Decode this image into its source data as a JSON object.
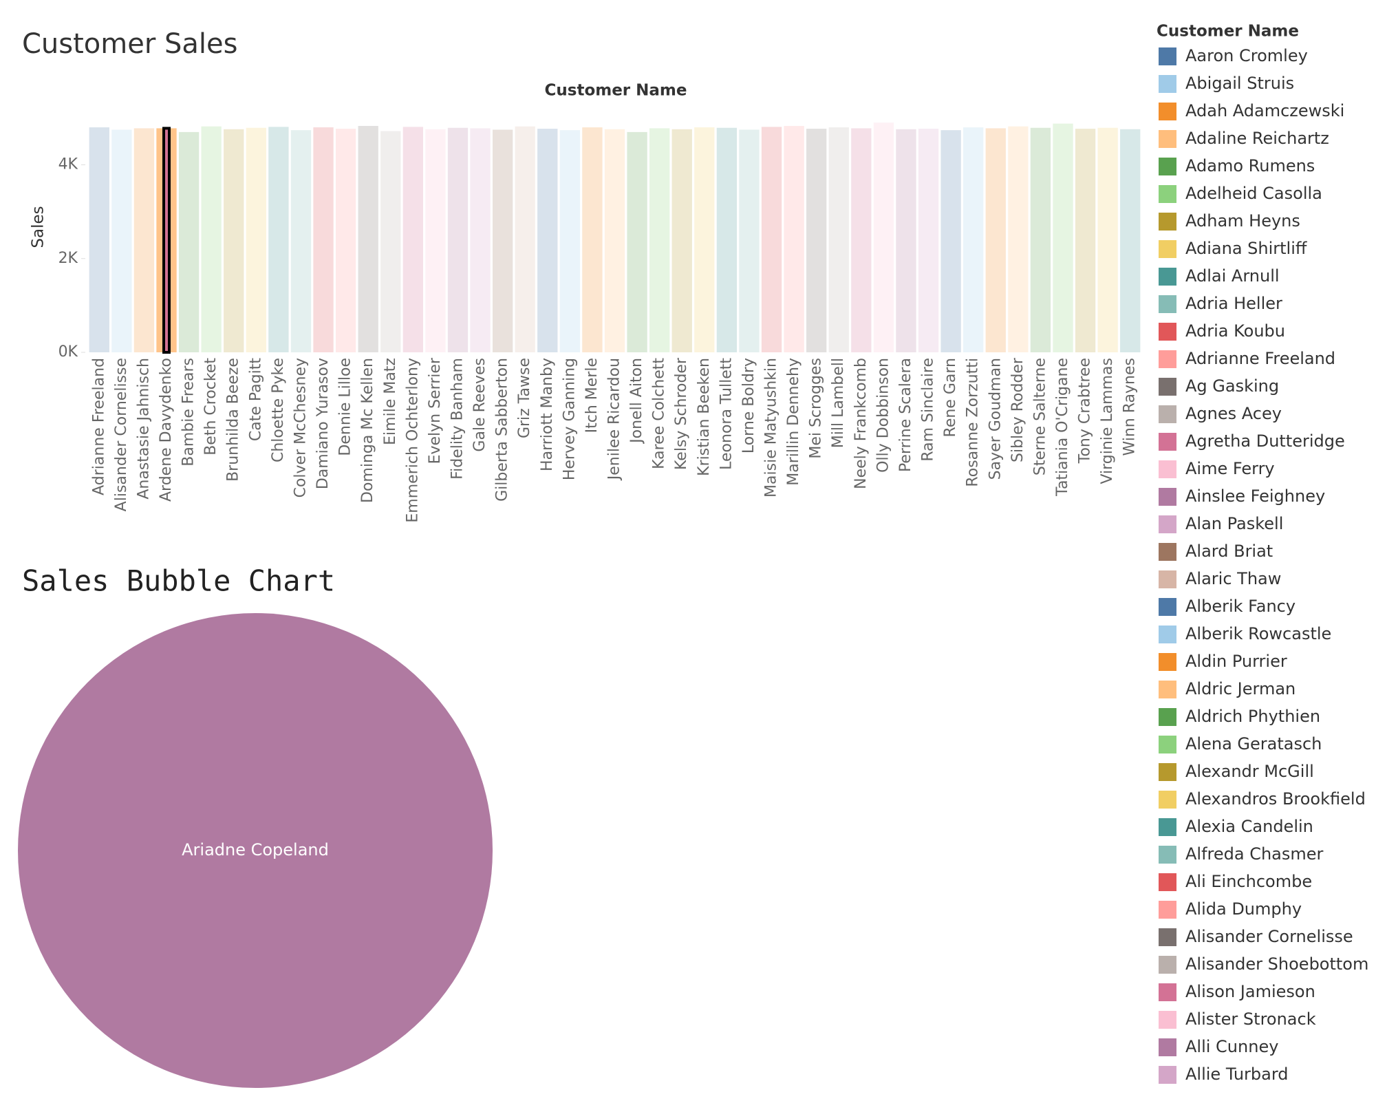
{
  "chart_data": [
    {
      "type": "bar",
      "title": "Customer Sales",
      "x_label": "Customer Name",
      "y_label": "Sales",
      "categories": [
        "Adrianne Freeland",
        "Alisander Cornelisse",
        "Anastasie Jahnisch",
        "Ardene Davydenko",
        "Bambie Frears",
        "Beth Crocket",
        "Brunhilda Beeze",
        "Cate Pagitt",
        "Chloette Pyke",
        "Colver McChesney",
        "Damiano Yurasov",
        "Dennie Lilloe",
        "Dominga Mc Kellen",
        "Eimile Matz",
        "Emmerich Ochterlony",
        "Evelyn Serrier",
        "Fidelity Banham",
        "Gale Reeves",
        "Gilberta Sabberton",
        "Griz Tawse",
        "Harriott Manby",
        "Hervey Ganning",
        "Itch Merle",
        "Jenilee Ricardou",
        "Jonell Aiton",
        "Karee Colchett",
        "Kelsy Schroder",
        "Kristian Beeken",
        "Leonora Tullett",
        "Lorne Boldry",
        "Maisie Matyushkin",
        "Marillin Dennehy",
        "Mei Scrogges",
        "Mill Lambell",
        "Neely Frankcomb",
        "Olly Dobbinson",
        "Perrine Scalera",
        "Ram Sinclaire",
        "Rene Garn",
        "Rosanne Zorzutti",
        "Sayer Goudman",
        "Sibley Rodder",
        "Sterne Salterne",
        "Tatiania O'Crigane",
        "Tony Crabtree",
        "Virginie Lammas",
        "Winn Raynes"
      ],
      "values": [
        4800,
        4750,
        4780,
        4780,
        4700,
        4820,
        4760,
        4790,
        4810,
        4740,
        4800,
        4770,
        4830,
        4720,
        4810,
        4760,
        4790,
        4780,
        4750,
        4820,
        4770,
        4740,
        4800,
        4760,
        4700,
        4780,
        4760,
        4800,
        4790,
        4750,
        4810,
        4830,
        4770,
        4800,
        4780,
        4900,
        4760,
        4770,
        4740,
        4800,
        4780,
        4820,
        4790,
        4880,
        4770,
        4790,
        4760
      ],
      "highlight_index": 3,
      "ylim": [
        0,
        5300
      ],
      "yticks": [
        {
          "value": 0,
          "label": "0K"
        },
        {
          "value": 2000,
          "label": "2K"
        },
        {
          "value": 4000,
          "label": "4K"
        }
      ],
      "grid": false,
      "legend": {
        "title": "Customer Name",
        "items": [
          {
            "name": "Aaron Cromley",
            "color": "#4e79a7"
          },
          {
            "name": "Abigail Struis",
            "color": "#a0cbe8"
          },
          {
            "name": "Adah Adamczewski",
            "color": "#f28e2b"
          },
          {
            "name": "Adaline Reichartz",
            "color": "#ffbe7d"
          },
          {
            "name": "Adamo Rumens",
            "color": "#59a14f"
          },
          {
            "name": "Adelheid Casolla",
            "color": "#8cd17d"
          },
          {
            "name": "Adham Heyns",
            "color": "#b6992d"
          },
          {
            "name": "Adiana Shirtliff",
            "color": "#f1ce63"
          },
          {
            "name": "Adlai Arnull",
            "color": "#499894"
          },
          {
            "name": "Adria Heller",
            "color": "#86bcb6"
          },
          {
            "name": "Adria Koubu",
            "color": "#e15759"
          },
          {
            "name": "Adrianne Freeland",
            "color": "#ff9d9a"
          },
          {
            "name": "Ag Gasking",
            "color": "#79706e"
          },
          {
            "name": "Agnes Acey",
            "color": "#bab0ac"
          },
          {
            "name": "Agretha Dutteridge",
            "color": "#d37295"
          },
          {
            "name": "Aime Ferry",
            "color": "#fabfd2"
          },
          {
            "name": "Ainslee Feighney",
            "color": "#b07aa1"
          },
          {
            "name": "Alan Paskell",
            "color": "#d4a6c8"
          },
          {
            "name": "Alard Briat",
            "color": "#9d7660"
          },
          {
            "name": "Alaric Thaw",
            "color": "#d7b5a6"
          },
          {
            "name": "Alberik Fancy",
            "color": "#4e79a7"
          },
          {
            "name": "Alberik Rowcastle",
            "color": "#a0cbe8"
          },
          {
            "name": "Aldin Purrier",
            "color": "#f28e2b"
          },
          {
            "name": "Aldric Jerman",
            "color": "#ffbe7d"
          },
          {
            "name": "Aldrich Phythien",
            "color": "#59a14f"
          },
          {
            "name": "Alena Geratasch",
            "color": "#8cd17d"
          },
          {
            "name": "Alexandr McGill",
            "color": "#b6992d"
          },
          {
            "name": "Alexandros Brookfield",
            "color": "#f1ce63"
          },
          {
            "name": "Alexia Candelin",
            "color": "#499894"
          },
          {
            "name": "Alfreda Chasmer",
            "color": "#86bcb6"
          },
          {
            "name": "Ali Einchcombe",
            "color": "#e15759"
          },
          {
            "name": "Alida Dumphy",
            "color": "#ff9d9a"
          },
          {
            "name": "Alisander Cornelisse",
            "color": "#79706e"
          },
          {
            "name": "Alisander Shoebottom",
            "color": "#bab0ac"
          },
          {
            "name": "Alison Jamieson",
            "color": "#d37295"
          },
          {
            "name": "Alister Stronack",
            "color": "#fabfd2"
          },
          {
            "name": "Alli Cunney",
            "color": "#b07aa1"
          },
          {
            "name": "Allie Turbard",
            "color": "#d4a6c8"
          }
        ]
      }
    },
    {
      "type": "bubble",
      "title": "Sales Bubble Chart",
      "bubbles": [
        {
          "label": "Ariadne Copeland",
          "color": "#b07aa1"
        }
      ]
    }
  ]
}
